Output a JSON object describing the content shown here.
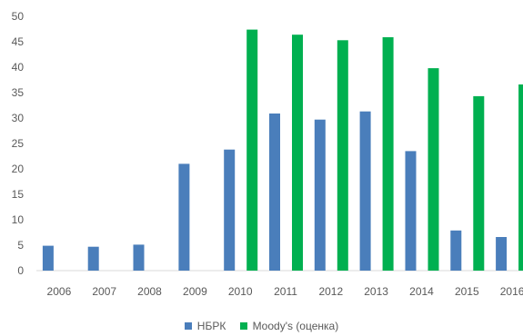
{
  "chart_data": {
    "type": "bar",
    "categories": [
      "2006",
      "2007",
      "2008",
      "2009",
      "2010",
      "2011",
      "2012",
      "2013",
      "2014",
      "2015",
      "2016"
    ],
    "series": [
      {
        "name": "НБРК",
        "color": "#4a7ebb",
        "values": [
          4.9,
          4.7,
          5.1,
          21.0,
          23.8,
          30.9,
          29.7,
          31.3,
          23.5,
          7.9,
          6.6
        ]
      },
      {
        "name": "Moody's (оценка)",
        "color": "#00b050",
        "values": [
          null,
          null,
          null,
          null,
          47.4,
          46.4,
          45.3,
          45.9,
          39.8,
          34.3,
          36.6
        ]
      }
    ],
    "ylim": [
      0,
      50
    ],
    "yticks": [
      0,
      5,
      10,
      15,
      20,
      25,
      30,
      35,
      40,
      45,
      50
    ],
    "title": "",
    "xlabel": "",
    "ylabel": "",
    "grid": false,
    "legend_position": "bottom"
  }
}
